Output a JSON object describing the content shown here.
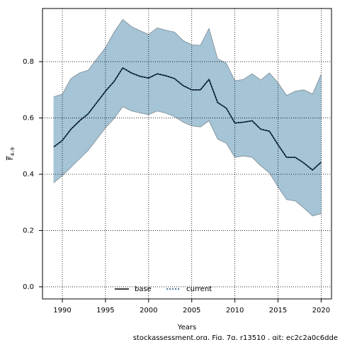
{
  "chart_data": {
    "type": "line",
    "xlabel": "Years",
    "ylabel": "F",
    "ylabel_subscript": "4–9",
    "caption": "stockassessment.org, Fig. 7g, r13510 , git: ec2c2a0c6dde",
    "x": [
      1989,
      1990,
      1991,
      1992,
      1993,
      1994,
      1995,
      1996,
      1997,
      1998,
      1999,
      2000,
      2001,
      2002,
      2003,
      2004,
      2005,
      2006,
      2007,
      2008,
      2009,
      2010,
      2011,
      2012,
      2013,
      2014,
      2015,
      2016,
      2017,
      2018,
      2019,
      2020
    ],
    "series": [
      {
        "name": "base",
        "color": "#000000",
        "dash": "solid",
        "values": [
          0.497,
          0.52,
          0.56,
          0.59,
          0.615,
          0.655,
          0.695,
          0.73,
          0.778,
          0.76,
          0.748,
          0.742,
          0.757,
          0.75,
          0.74,
          0.715,
          0.7,
          0.7,
          0.737,
          0.655,
          0.635,
          0.582,
          0.585,
          0.59,
          0.56,
          0.553,
          0.505,
          0.46,
          0.46,
          0.44,
          0.415,
          0.443
        ]
      },
      {
        "name": "current",
        "color": "#1f4e79",
        "dash": "dotted",
        "values": [
          0.497,
          0.52,
          0.56,
          0.59,
          0.615,
          0.655,
          0.695,
          0.73,
          0.778,
          0.76,
          0.748,
          0.742,
          0.757,
          0.75,
          0.74,
          0.715,
          0.7,
          0.7,
          0.737,
          0.655,
          0.635,
          0.582,
          0.585,
          0.59,
          0.56,
          0.553,
          0.505,
          0.46,
          0.46,
          0.44,
          0.415,
          0.443
        ]
      }
    ],
    "band": {
      "color": "#a5c4d6",
      "edge_color": "#7f8c94",
      "upper": [
        0.675,
        0.685,
        0.74,
        0.76,
        0.77,
        0.81,
        0.85,
        0.905,
        0.95,
        0.925,
        0.91,
        0.897,
        0.92,
        0.912,
        0.905,
        0.875,
        0.86,
        0.858,
        0.918,
        0.81,
        0.795,
        0.732,
        0.737,
        0.757,
        0.735,
        0.76,
        0.725,
        0.68,
        0.695,
        0.7,
        0.685,
        0.755
      ],
      "lower": [
        0.37,
        0.395,
        0.425,
        0.455,
        0.485,
        0.525,
        0.565,
        0.598,
        0.64,
        0.625,
        0.618,
        0.612,
        0.625,
        0.617,
        0.605,
        0.585,
        0.572,
        0.568,
        0.59,
        0.525,
        0.51,
        0.46,
        0.465,
        0.46,
        0.43,
        0.405,
        0.355,
        0.31,
        0.305,
        0.28,
        0.252,
        0.26
      ]
    },
    "xlim": [
      1987.7,
      2021.2
    ],
    "ylim": [
      -0.043,
      0.989
    ],
    "xticks": [
      1990,
      1995,
      2000,
      2005,
      2010,
      2015,
      2020
    ],
    "yticks": [
      {
        "value": 0,
        "label": "0.0"
      },
      0.2,
      0.4,
      0.6,
      0.8
    ],
    "grid": true,
    "legend": "bottom"
  }
}
